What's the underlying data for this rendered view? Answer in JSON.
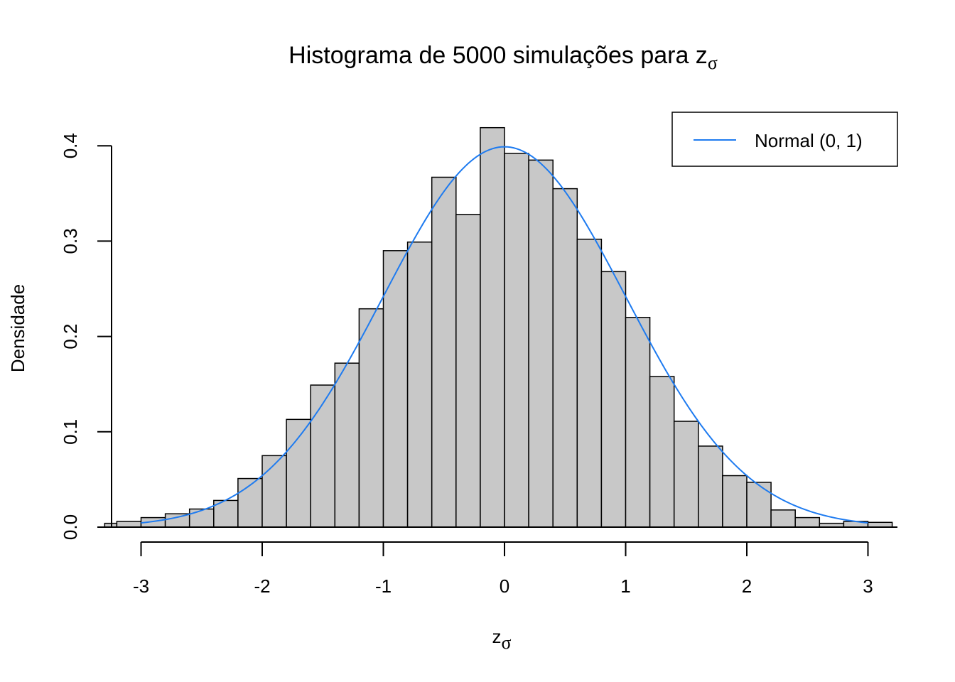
{
  "chart_data": {
    "type": "bar",
    "title": "Histograma de 5000 simulações para z",
    "title_subscript": "σ",
    "xlabel": "z",
    "xlabel_subscript": "σ",
    "ylabel": "Densidade",
    "xlim": [
      -3.3,
      3.2
    ],
    "ylim": [
      0,
      0.42
    ],
    "xticks": [
      -3,
      -2,
      -1,
      0,
      1,
      2,
      3
    ],
    "xtick_labels": [
      "-3",
      "-2",
      "-1",
      "0",
      "1",
      "2",
      "3"
    ],
    "yticks": [
      0.0,
      0.1,
      0.2,
      0.3,
      0.4
    ],
    "ytick_labels": [
      "0.0",
      "0.1",
      "0.2",
      "0.3",
      "0.4"
    ],
    "grid": false,
    "legend_position": "top-right",
    "bar_color": "#c8c8c8",
    "bar_edge_color": "#000000",
    "bins": {
      "edges": [
        -3.3,
        -3.2,
        -3.0,
        -2.8,
        -2.6,
        -2.4,
        -2.2,
        -2.0,
        -1.8,
        -1.6,
        -1.4,
        -1.2,
        -1.0,
        -0.8,
        -0.6,
        -0.4,
        -0.2,
        0.0,
        0.2,
        0.4,
        0.6,
        0.8,
        1.0,
        1.2,
        1.4,
        1.6,
        1.8,
        2.0,
        2.2,
        2.4,
        2.6,
        2.8,
        3.0,
        3.2
      ],
      "densities": [
        0.004,
        0.006,
        0.01,
        0.014,
        0.019,
        0.028,
        0.051,
        0.075,
        0.113,
        0.149,
        0.172,
        0.229,
        0.29,
        0.299,
        0.367,
        0.328,
        0.419,
        0.392,
        0.385,
        0.355,
        0.302,
        0.268,
        0.22,
        0.158,
        0.111,
        0.085,
        0.054,
        0.047,
        0.018,
        0.01,
        0.004,
        0.006,
        0.005
      ]
    },
    "series": [
      {
        "name": "Normal (0, 1)",
        "type": "line",
        "color": "#1e7bf0",
        "function": "dnorm",
        "x_range": [
          -3,
          3
        ],
        "mean": 0,
        "sd": 1
      }
    ]
  }
}
